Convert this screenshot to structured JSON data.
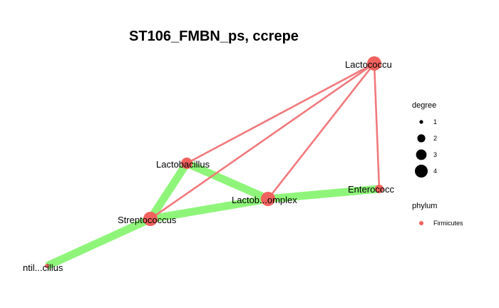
{
  "title": "ST106_FMBN_ps, ccrepe",
  "colors": {
    "background": "#ffffff",
    "node_firmicutes": "#f0625e",
    "edge_positive": "#8ff57a",
    "edge_negative": "#f1797d"
  },
  "nodes": [
    {
      "id": "lactococcus",
      "label": "Lactococcu",
      "degree": 4
    },
    {
      "id": "lactobacillus",
      "label": "Lactobacillus",
      "degree": 3
    },
    {
      "id": "lactob_complex",
      "label": "Lactob...omplex",
      "degree": 4
    },
    {
      "id": "enterococcus",
      "label": "Enterococc",
      "degree": 2
    },
    {
      "id": "streptococcus",
      "label": "Streptococcus",
      "degree": 4
    },
    {
      "id": "ntil_cillus",
      "label": "ntil...cillus",
      "degree": 1
    }
  ],
  "edges": [
    {
      "source": "lactococcus",
      "target": "lactobacillus",
      "type": "negative"
    },
    {
      "source": "lactococcus",
      "target": "streptococcus",
      "type": "negative"
    },
    {
      "source": "lactococcus",
      "target": "lactob_complex",
      "type": "negative"
    },
    {
      "source": "lactococcus",
      "target": "enterococcus",
      "type": "negative"
    },
    {
      "source": "lactobacillus",
      "target": "lactob_complex",
      "type": "positive"
    },
    {
      "source": "lactobacillus",
      "target": "streptococcus",
      "type": "positive"
    },
    {
      "source": "streptococcus",
      "target": "lactob_complex",
      "type": "positive"
    },
    {
      "source": "lactob_complex",
      "target": "enterococcus",
      "type": "positive"
    },
    {
      "source": "streptococcus",
      "target": "ntil_cillus",
      "type": "positive"
    }
  ],
  "legend": {
    "degree_title": "degree",
    "degree_items": [
      "1",
      "2",
      "3",
      "4"
    ],
    "phylum_title": "phylum",
    "phylum_items": [
      {
        "label": "Firmicutes",
        "color": "#f0625e"
      }
    ]
  }
}
